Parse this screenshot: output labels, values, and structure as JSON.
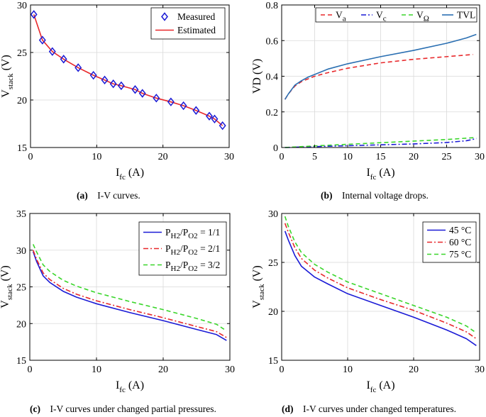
{
  "colors": {
    "red": "#e8282b",
    "blue": "#1a1ad6",
    "green": "#3ad62b",
    "tvl": "#2a6fb2",
    "axis": "#000000",
    "grid": "#d9d9d9"
  },
  "chart_data": [
    {
      "id": "a",
      "type": "scatter",
      "caption_label": "(a)",
      "caption_text": "I-V curves.",
      "ylabel_main": "V",
      "ylabel_sub": "stack",
      "ylabel_unit": "(V)",
      "xlabel_main": "I",
      "xlabel_sub": "fc",
      "xlabel_unit": "(A)",
      "xlim": [
        0,
        30
      ],
      "ylim": [
        15,
        30
      ],
      "xticks": [
        0,
        10,
        20,
        30
      ],
      "yticks": [
        15,
        20,
        25,
        30
      ],
      "grid": true,
      "legend_position": "top-right",
      "series": [
        {
          "name": "Measured",
          "style": "diamond",
          "color": "#1a1ad6",
          "x": [
            0.5,
            1.8,
            3.3,
            5.0,
            7.2,
            9.5,
            11.2,
            12.5,
            13.7,
            15.8,
            16.9,
            19.0,
            21.2,
            23.1,
            25.0,
            27.0,
            27.8,
            29.0
          ],
          "y": [
            29.0,
            26.3,
            25.1,
            24.3,
            23.4,
            22.6,
            22.1,
            21.7,
            21.5,
            21.1,
            20.7,
            20.2,
            19.8,
            19.4,
            18.9,
            18.3,
            18.0,
            17.3
          ]
        },
        {
          "name": "Estimated",
          "style": "line",
          "color": "#e8282b",
          "x": [
            0.5,
            1.8,
            3.3,
            5.0,
            7.2,
            9.5,
            11.2,
            12.5,
            13.7,
            15.8,
            16.9,
            19.0,
            21.2,
            23.1,
            25.0,
            27.0,
            27.8,
            29.0
          ],
          "y": [
            29.0,
            26.3,
            25.1,
            24.3,
            23.4,
            22.6,
            22.1,
            21.7,
            21.5,
            21.1,
            20.7,
            20.2,
            19.8,
            19.4,
            18.9,
            18.3,
            18.0,
            17.3
          ]
        }
      ]
    },
    {
      "id": "b",
      "type": "line",
      "caption_label": "(b)",
      "caption_text": "Internal voltage drops.",
      "ylabel_main": "VD",
      "ylabel_sub": "",
      "ylabel_unit": "(V)",
      "xlabel_main": "I",
      "xlabel_sub": "fc",
      "xlabel_unit": "(A)",
      "xlim": [
        0,
        30
      ],
      "ylim": [
        0,
        0.8
      ],
      "xticks": [
        0,
        5,
        10,
        15,
        20,
        25,
        30
      ],
      "yticks": [
        0,
        0.2,
        0.4,
        0.6,
        0.8
      ],
      "grid": true,
      "legend_position": "top",
      "series": [
        {
          "name": "V",
          "sub": "a",
          "style": "dash",
          "color": "#e8282b",
          "x": [
            0.5,
            1,
            2,
            3,
            4,
            5,
            7,
            10,
            15,
            20,
            25,
            29
          ],
          "y": [
            0.27,
            0.3,
            0.345,
            0.37,
            0.385,
            0.4,
            0.42,
            0.445,
            0.475,
            0.495,
            0.51,
            0.522
          ]
        },
        {
          "name": "V",
          "sub": "c",
          "style": "dashdot",
          "color": "#1a1ad6",
          "x": [
            0.5,
            5,
            10,
            15,
            20,
            25,
            28,
            29.5
          ],
          "y": [
            0.0,
            0.005,
            0.01,
            0.015,
            0.02,
            0.028,
            0.038,
            0.05
          ]
        },
        {
          "name": "V",
          "sub": "Ω",
          "style": "dash",
          "color": "#3ad62b",
          "x": [
            0.5,
            5,
            10,
            15,
            20,
            25,
            29.5
          ],
          "y": [
            0.0,
            0.009,
            0.018,
            0.027,
            0.036,
            0.045,
            0.056
          ]
        },
        {
          "name": "TVL",
          "sub": "",
          "style": "solid",
          "color": "#2a6fb2",
          "x": [
            0.5,
            1,
            2,
            3,
            4,
            5,
            7,
            10,
            15,
            20,
            25,
            28,
            29.5
          ],
          "y": [
            0.27,
            0.3,
            0.35,
            0.375,
            0.395,
            0.41,
            0.44,
            0.47,
            0.51,
            0.545,
            0.585,
            0.615,
            0.635
          ]
        }
      ]
    },
    {
      "id": "c",
      "type": "line",
      "caption_label": "(c)",
      "caption_text": "I-V curves under changed partial pressures.",
      "ylabel_main": "V",
      "ylabel_sub": "stack",
      "ylabel_unit": "(V)",
      "xlabel_main": "I",
      "xlabel_sub": "fc",
      "xlabel_unit": "(A)",
      "xlim": [
        0,
        30
      ],
      "ylim": [
        15,
        35
      ],
      "xticks": [
        0,
        10,
        20,
        30
      ],
      "yticks": [
        15,
        20,
        25,
        30,
        35
      ],
      "grid": true,
      "legend_position": "top-right",
      "series": [
        {
          "name": "P",
          "sub": "H2",
          "name2": "/P",
          "sub2": "O2",
          "suffix": " = 1/1",
          "style": "solid",
          "color": "#1a1ad6",
          "x": [
            0.5,
            1,
            2,
            3,
            5,
            7,
            10,
            15,
            20,
            25,
            28,
            29.5
          ],
          "y": [
            29.8,
            28.5,
            26.5,
            25.6,
            24.4,
            23.6,
            22.7,
            21.5,
            20.4,
            19.2,
            18.5,
            17.7
          ]
        },
        {
          "name": "P",
          "sub": "H2",
          "name2": "/P",
          "sub2": "O2",
          "suffix": " = 2/1",
          "style": "dashdot",
          "color": "#e8282b",
          "x": [
            0.5,
            1,
            2,
            3,
            5,
            7,
            10,
            15,
            20,
            25,
            28,
            29.5
          ],
          "y": [
            30.0,
            28.8,
            26.9,
            26.0,
            24.8,
            24.0,
            23.1,
            21.9,
            20.8,
            19.6,
            18.9,
            18.1
          ]
        },
        {
          "name": "P",
          "sub": "H2",
          "name2": "/P",
          "sub2": "O2",
          "suffix": " = 3/2",
          "style": "dash",
          "color": "#3ad62b",
          "x": [
            0.5,
            1,
            2,
            3,
            5,
            7,
            10,
            15,
            20,
            25,
            28,
            29.5
          ],
          "y": [
            30.8,
            29.8,
            28.0,
            27.1,
            25.9,
            25.1,
            24.2,
            23.0,
            21.9,
            20.7,
            19.9,
            19.0
          ]
        }
      ]
    },
    {
      "id": "d",
      "type": "line",
      "caption_label": "(d)",
      "caption_text": "I-V curves under changed temperatures.",
      "ylabel_main": "V",
      "ylabel_sub": "stack",
      "ylabel_unit": "(V)",
      "xlabel_main": "I",
      "xlabel_sub": "fc",
      "xlabel_unit": "(A)",
      "xlim": [
        0,
        30
      ],
      "ylim": [
        15,
        30
      ],
      "xticks": [
        0,
        10,
        20,
        30
      ],
      "yticks": [
        15,
        20,
        25,
        30
      ],
      "grid": true,
      "legend_position": "top-right",
      "series": [
        {
          "name": "45 °C",
          "style": "solid",
          "color": "#1a1ad6",
          "x": [
            0.5,
            1,
            2,
            3,
            5,
            7,
            10,
            15,
            20,
            25,
            28,
            29.5
          ],
          "y": [
            28.2,
            27.3,
            25.7,
            24.6,
            23.5,
            22.8,
            21.8,
            20.6,
            19.4,
            18.1,
            17.2,
            16.5
          ]
        },
        {
          "name": "60 °C",
          "style": "dashdot",
          "color": "#e8282b",
          "x": [
            0.5,
            1,
            2,
            3,
            5,
            7,
            10,
            15,
            20,
            25,
            28,
            29.5
          ],
          "y": [
            29.0,
            28.1,
            26.5,
            25.4,
            24.2,
            23.4,
            22.4,
            21.2,
            20.1,
            18.8,
            17.9,
            17.2
          ]
        },
        {
          "name": "75 °C",
          "style": "dash",
          "color": "#3ad62b",
          "x": [
            0.5,
            1,
            2,
            3,
            5,
            7,
            10,
            15,
            20,
            25,
            28,
            29.5
          ],
          "y": [
            29.7,
            28.7,
            27.1,
            26.0,
            24.8,
            24.0,
            23.0,
            21.8,
            20.6,
            19.4,
            18.5,
            17.8
          ]
        }
      ]
    }
  ]
}
